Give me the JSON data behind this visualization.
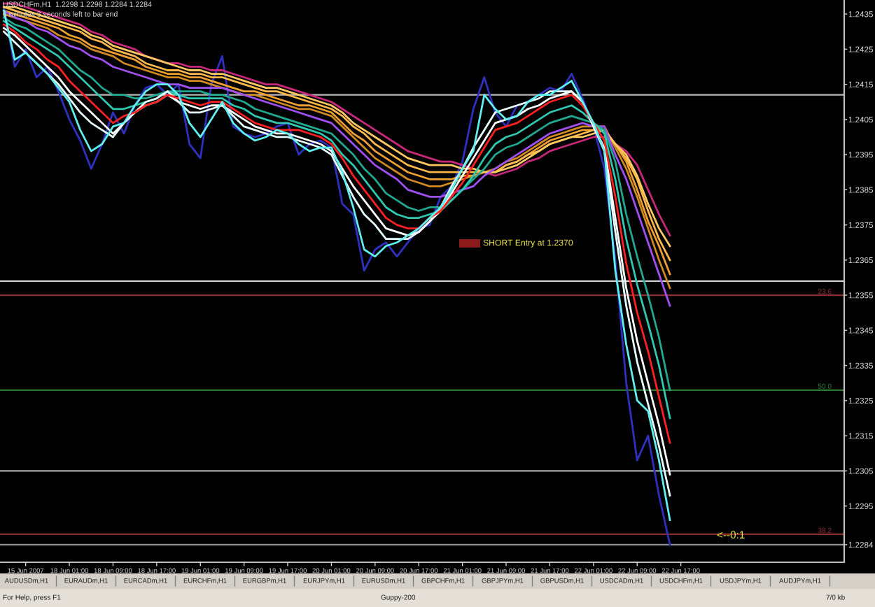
{
  "chart_data": {
    "type": "line",
    "title": "USDCHFm,H1  1.2298 1.2298 1.2284 1.2284",
    "subtitle": "8 minutes 3 seconds left to bar end",
    "categories": [
      null,
      null,
      "15 Jun 2007",
      null,
      null,
      null,
      "18 Jun 01:00",
      null,
      null,
      null,
      "18 Jun 09:00",
      null,
      null,
      null,
      "18 Jun 17:00",
      null,
      null,
      null,
      "19 Jun 01:00",
      null,
      null,
      null,
      "19 Jun 09:00",
      null,
      null,
      null,
      "19 Jun 17:00",
      null,
      null,
      null,
      "20 Jun 01:00",
      null,
      null,
      null,
      "20 Jun 09:00",
      null,
      null,
      null,
      "20 Jun 17:00",
      null,
      null,
      null,
      "21 Jun 01:00",
      null,
      null,
      null,
      "21 Jun 09:00",
      null,
      null,
      null,
      "21 Jun 17:00",
      null,
      null,
      null,
      "22 Jun 01:00",
      null,
      null,
      null,
      "22 Jun 09:00",
      null,
      null,
      null,
      "22 Jun 17:00",
      null,
      null,
      null,
      null,
      null,
      null,
      null,
      null,
      null,
      null,
      null,
      null,
      null,
      null
    ],
    "ylim": [
      1.2279,
      1.2439
    ],
    "yticks": [
      1.2284,
      1.2295,
      1.2305,
      1.2315,
      1.2325,
      1.2335,
      1.2345,
      1.2355,
      1.2365,
      1.2375,
      1.2385,
      1.2395,
      1.2405,
      1.2415,
      1.2425,
      1.2435
    ],
    "series": [
      {
        "color": "#3030c0",
        "values": [
          1.2437,
          1.242,
          1.2425,
          1.2417,
          1.242,
          1.2413,
          1.2405,
          1.2399,
          1.2391,
          1.2398,
          1.2407,
          1.2401,
          1.2409,
          1.2414,
          1.2415,
          1.2412,
          1.2415,
          1.2398,
          1.2394,
          1.2415,
          1.2423,
          1.2403,
          1.2401,
          1.24,
          1.2401,
          1.2403,
          1.2404,
          1.2395,
          1.2398,
          1.2399,
          1.2397,
          1.2381,
          1.2378,
          1.2362,
          1.2368,
          1.237,
          1.2366,
          1.237,
          1.2374,
          1.2375,
          1.2383,
          1.2386,
          1.2393,
          1.2408,
          1.2417,
          1.2407,
          1.2403,
          1.2409,
          1.241,
          1.2412,
          1.2414,
          1.2413,
          1.2418,
          1.2411,
          1.2403,
          1.2391,
          1.2365,
          1.233,
          1.2308,
          1.2315,
          1.2298,
          1.2284,
          null,
          null,
          null,
          null,
          null,
          null,
          null,
          null,
          null,
          null,
          null,
          null,
          null,
          null,
          null
        ]
      },
      {
        "color": "#c8287a",
        "values": [
          1.2438,
          1.2438,
          1.2437,
          1.2436,
          1.2435,
          1.2434,
          1.2433,
          1.2432,
          1.243,
          1.2429,
          1.2427,
          1.2426,
          1.2425,
          1.2423,
          1.2422,
          1.2421,
          1.2421,
          1.242,
          1.242,
          1.2419,
          1.2419,
          1.2418,
          1.2417,
          1.2416,
          1.2415,
          1.2415,
          1.2414,
          1.2413,
          1.2412,
          1.2411,
          1.241,
          1.2408,
          1.2406,
          1.2404,
          1.2402,
          1.24,
          1.2398,
          1.2396,
          1.2395,
          1.2394,
          1.2393,
          1.2393,
          1.2392,
          1.2391,
          1.239,
          1.2389,
          1.239,
          1.2391,
          1.2393,
          1.2394,
          1.2396,
          1.2397,
          1.2398,
          1.2399,
          1.24,
          1.24,
          1.2398,
          1.2396,
          1.2392,
          1.2385,
          1.2378,
          1.2372,
          null,
          null,
          null,
          null,
          null,
          null,
          null,
          null,
          null,
          null,
          null,
          null,
          null,
          null,
          null
        ]
      },
      {
        "color": "#d08a20",
        "values": [
          1.2435,
          1.2434,
          1.2433,
          1.2432,
          1.2431,
          1.2429,
          1.2428,
          1.2427,
          1.2425,
          1.2424,
          1.2423,
          1.2421,
          1.242,
          1.2419,
          1.2418,
          1.2417,
          1.2417,
          1.2416,
          1.2416,
          1.2415,
          1.2414,
          1.2413,
          1.2412,
          1.2412,
          1.2411,
          1.241,
          1.2409,
          1.2408,
          1.2408,
          1.2407,
          1.2406,
          1.2403,
          1.24,
          1.2397,
          1.2394,
          1.2392,
          1.239,
          1.2388,
          1.2387,
          1.2386,
          1.2386,
          1.2387,
          1.2388,
          1.2389,
          1.239,
          1.2391,
          1.2393,
          1.2394,
          1.2396,
          1.2398,
          1.24,
          1.2401,
          1.2402,
          1.2403,
          1.2403,
          1.2403,
          1.2397,
          1.2391,
          1.2383,
          1.2374,
          1.2365,
          1.2357,
          null,
          null,
          null,
          null,
          null,
          null,
          null,
          null,
          null,
          null,
          null,
          null,
          null,
          null,
          null
        ]
      },
      {
        "color": "#f0a030",
        "values": [
          1.2436,
          1.2435,
          1.2434,
          1.2433,
          1.2432,
          1.2431,
          1.2429,
          1.2428,
          1.2426,
          1.2425,
          1.2424,
          1.2423,
          1.2422,
          1.242,
          1.2419,
          1.2418,
          1.2418,
          1.2417,
          1.2417,
          1.2416,
          1.2415,
          1.2414,
          1.2413,
          1.2413,
          1.2412,
          1.2411,
          1.241,
          1.2409,
          1.2409,
          1.2408,
          1.2407,
          1.2404,
          1.2401,
          1.2399,
          1.2396,
          1.2394,
          1.2392,
          1.239,
          1.2389,
          1.2388,
          1.2388,
          1.2388,
          1.2389,
          1.2389,
          1.239,
          1.239,
          1.2392,
          1.2393,
          1.2395,
          1.2397,
          1.2399,
          1.24,
          1.2401,
          1.2402,
          1.2402,
          1.2402,
          1.2398,
          1.2393,
          1.2385,
          1.2376,
          1.2369,
          1.2361,
          null,
          null,
          null,
          null,
          null,
          null,
          null,
          null,
          null,
          null,
          null,
          null,
          null,
          null,
          null
        ]
      },
      {
        "color": "#ffb84a",
        "values": [
          1.2437,
          1.2436,
          1.2435,
          1.2434,
          1.2433,
          1.2432,
          1.2431,
          1.243,
          1.2428,
          1.2427,
          1.2425,
          1.2424,
          1.2423,
          1.2421,
          1.242,
          1.2419,
          1.2419,
          1.2418,
          1.2418,
          1.2417,
          1.2417,
          1.2416,
          1.2415,
          1.2414,
          1.2413,
          1.2413,
          1.2412,
          1.2411,
          1.241,
          1.2409,
          1.2408,
          1.2406,
          1.2403,
          1.2401,
          1.2398,
          1.2396,
          1.2394,
          1.2392,
          1.2391,
          1.239,
          1.239,
          1.239,
          1.239,
          1.239,
          1.239,
          1.239,
          1.2392,
          1.2393,
          1.2395,
          1.2396,
          1.2398,
          1.2399,
          1.24,
          1.2401,
          1.2402,
          1.2402,
          1.2398,
          1.2394,
          1.2388,
          1.2379,
          1.2371,
          1.2365,
          null,
          null,
          null,
          null,
          null,
          null,
          null,
          null,
          null,
          null,
          null,
          null,
          null,
          null,
          null
        ]
      },
      {
        "color": "#ffc860",
        "values": [
          1.2437,
          1.2437,
          1.2436,
          1.2435,
          1.2434,
          1.2433,
          1.2432,
          1.2431,
          1.2429,
          1.2428,
          1.2426,
          1.2425,
          1.2424,
          1.2423,
          1.2422,
          1.2421,
          1.242,
          1.2419,
          1.2419,
          1.2418,
          1.2418,
          1.2417,
          1.2416,
          1.2415,
          1.2414,
          1.2414,
          1.2413,
          1.2412,
          1.2411,
          1.241,
          1.2409,
          1.2407,
          1.2404,
          1.2402,
          1.24,
          1.2398,
          1.2396,
          1.2394,
          1.2393,
          1.2392,
          1.2392,
          1.2392,
          1.2391,
          1.2391,
          1.239,
          1.239,
          1.2391,
          1.2392,
          1.2394,
          1.2396,
          1.2398,
          1.2399,
          1.24,
          1.24,
          1.2401,
          1.2402,
          1.2398,
          1.2395,
          1.2389,
          1.2381,
          1.2374,
          1.2369,
          null,
          null,
          null,
          null,
          null,
          null,
          null,
          null,
          null,
          null,
          null,
          null,
          null,
          null,
          null
        ]
      },
      {
        "color": "#a050f0",
        "values": [
          1.2436,
          1.2434,
          1.2433,
          1.2431,
          1.243,
          1.2428,
          1.2426,
          1.2425,
          1.2423,
          1.2422,
          1.242,
          1.2419,
          1.2418,
          1.2417,
          1.2416,
          1.2415,
          1.2415,
          1.2414,
          1.2414,
          1.2414,
          1.2414,
          1.2413,
          1.2412,
          1.2411,
          1.241,
          1.2409,
          1.2408,
          1.2407,
          1.2406,
          1.2405,
          1.2404,
          1.2401,
          1.2398,
          1.2395,
          1.2392,
          1.239,
          1.2388,
          1.2385,
          1.2384,
          1.2383,
          1.2383,
          1.2384,
          1.2385,
          1.2386,
          1.2389,
          1.2391,
          1.2393,
          1.2395,
          1.2397,
          1.2399,
          1.2401,
          1.2402,
          1.2403,
          1.2404,
          1.2403,
          1.2403,
          1.2395,
          1.2388,
          1.2379,
          1.237,
          1.2361,
          1.2352,
          null,
          null,
          null,
          null,
          null,
          null,
          null,
          null,
          null,
          null,
          null,
          null,
          null,
          null,
          null
        ]
      },
      {
        "color": "#20a890",
        "values": [
          1.2434,
          1.2432,
          1.2431,
          1.2429,
          1.2427,
          1.2425,
          1.2422,
          1.2419,
          1.2417,
          1.2414,
          1.2412,
          1.2412,
          1.2411,
          1.2411,
          1.2412,
          1.2413,
          1.2413,
          1.2413,
          1.2413,
          1.2412,
          1.2412,
          1.2411,
          1.241,
          1.2408,
          1.2407,
          1.2406,
          1.2405,
          1.2404,
          1.2403,
          1.2402,
          1.2401,
          1.2398,
          1.2395,
          1.2391,
          1.2388,
          1.2384,
          1.2382,
          1.238,
          1.2379,
          1.238,
          1.238,
          1.2382,
          1.2385,
          1.2388,
          1.2391,
          1.2395,
          1.2397,
          1.2398,
          1.24,
          1.2402,
          1.2404,
          1.2405,
          1.2406,
          1.2405,
          1.2404,
          1.2402,
          1.2393,
          1.2378,
          1.2366,
          1.2355,
          1.2343,
          1.2328,
          null,
          null,
          null,
          null,
          null,
          null,
          null,
          null,
          null,
          null,
          null,
          null,
          null,
          null,
          null
        ]
      },
      {
        "color": "#30c8b0",
        "values": [
          1.2433,
          1.2431,
          1.2429,
          1.2427,
          1.2425,
          1.2423,
          1.242,
          1.2417,
          1.2414,
          1.2411,
          1.2408,
          1.2408,
          1.2409,
          1.241,
          1.2411,
          1.2413,
          1.2412,
          1.2411,
          1.2411,
          1.2411,
          1.2411,
          1.2409,
          1.2408,
          1.2406,
          1.2405,
          1.2404,
          1.2404,
          1.2403,
          1.2402,
          1.2401,
          1.2399,
          1.2395,
          1.2392,
          1.2388,
          1.2384,
          1.238,
          1.2378,
          1.2377,
          1.2377,
          1.2378,
          1.2379,
          1.2382,
          1.2385,
          1.2389,
          1.2394,
          1.2398,
          1.24,
          1.2401,
          1.2403,
          1.2405,
          1.2407,
          1.2408,
          1.2409,
          1.2407,
          1.2404,
          1.2401,
          1.2388,
          1.2371,
          1.2358,
          1.2347,
          1.2335,
          1.232,
          null,
          null,
          null,
          null,
          null,
          null,
          null,
          null,
          null,
          null,
          null,
          null,
          null,
          null,
          null
        ]
      },
      {
        "color": "#e8ffff",
        "values": [
          1.243,
          1.2427,
          1.2424,
          1.2421,
          1.2418,
          1.2415,
          1.2411,
          1.2407,
          1.2404,
          1.2402,
          1.24,
          1.2404,
          1.2407,
          1.241,
          1.2411,
          1.2413,
          1.241,
          1.2407,
          1.2407,
          1.2408,
          1.2409,
          1.2406,
          1.2403,
          1.2402,
          1.2401,
          1.24,
          1.24,
          1.2399,
          1.2398,
          1.2397,
          1.2395,
          1.2389,
          1.2383,
          1.2378,
          1.2375,
          1.2371,
          1.2371,
          1.2371,
          1.2373,
          1.2376,
          1.238,
          1.2386,
          1.2391,
          1.2397,
          1.2402,
          1.2407,
          1.2408,
          1.2409,
          1.241,
          1.2411,
          1.2413,
          1.2413,
          1.2413,
          1.241,
          1.2403,
          1.2396,
          1.2373,
          1.2352,
          1.2336,
          1.2324,
          1.2312,
          1.2298,
          null,
          null,
          null,
          null,
          null,
          null,
          null,
          null,
          null,
          null,
          null,
          null,
          null,
          null,
          null
        ]
      },
      {
        "color": "#ffffff",
        "values": [
          1.2431,
          1.2429,
          1.2426,
          1.2423,
          1.242,
          1.2417,
          1.2413,
          1.241,
          1.2407,
          1.2404,
          1.2401,
          1.2404,
          1.2407,
          1.2409,
          1.241,
          1.2412,
          1.241,
          1.2409,
          1.2408,
          1.2409,
          1.2409,
          1.2407,
          1.2405,
          1.2403,
          1.2402,
          1.2401,
          1.2401,
          1.24,
          1.2399,
          1.2398,
          1.2396,
          1.2391,
          1.2386,
          1.2382,
          1.2378,
          1.2374,
          1.2373,
          1.2372,
          1.2373,
          1.2376,
          1.2379,
          1.2384,
          1.2389,
          1.2394,
          1.2399,
          1.2404,
          1.2405,
          1.2406,
          1.2408,
          1.2409,
          1.2411,
          1.2412,
          1.2413,
          1.241,
          1.2403,
          1.2397,
          1.2377,
          1.2357,
          1.2342,
          1.233,
          1.2318,
          1.2304,
          null,
          null,
          null,
          null,
          null,
          null,
          null,
          null,
          null,
          null,
          null,
          null,
          null,
          null,
          null
        ]
      },
      {
        "color": "#ff2020",
        "values": [
          1.2432,
          1.243,
          1.2427,
          1.2425,
          1.2422,
          1.242,
          1.2416,
          1.2413,
          1.241,
          1.2407,
          1.2404,
          1.2406,
          1.2407,
          1.2409,
          1.241,
          1.2412,
          1.2411,
          1.241,
          1.2409,
          1.241,
          1.241,
          1.2408,
          1.2406,
          1.2404,
          1.2403,
          1.2402,
          1.2402,
          1.2402,
          1.2401,
          1.24,
          1.2398,
          1.2394,
          1.2389,
          1.2385,
          1.2381,
          1.2377,
          1.2375,
          1.2374,
          1.2374,
          1.2377,
          1.2379,
          1.2383,
          1.2387,
          1.2392,
          1.2397,
          1.2402,
          1.2403,
          1.2404,
          1.2406,
          1.2408,
          1.241,
          1.2411,
          1.2412,
          1.2409,
          1.2404,
          1.2399,
          1.2383,
          1.2364,
          1.235,
          1.2339,
          1.2326,
          1.2313,
          null,
          null,
          null,
          null,
          null,
          null,
          null,
          null,
          null,
          null,
          null,
          null,
          null,
          null,
          null
        ]
      },
      {
        "color": "#60f0f0",
        "values": [
          1.2436,
          1.2422,
          1.2424,
          1.2421,
          1.2418,
          1.2414,
          1.241,
          1.2402,
          1.2396,
          1.2398,
          1.2403,
          1.2404,
          1.2409,
          1.2413,
          1.2415,
          1.2415,
          1.2412,
          1.2404,
          1.24,
          1.2405,
          1.241,
          1.2404,
          1.2401,
          1.2399,
          1.24,
          1.2402,
          1.2401,
          1.2398,
          1.2396,
          1.2397,
          1.2397,
          1.239,
          1.238,
          1.2368,
          1.2366,
          1.2369,
          1.237,
          1.2372,
          1.2374,
          1.2377,
          1.238,
          1.2385,
          1.2391,
          1.2396,
          1.2412,
          1.2408,
          1.2405,
          1.2406,
          1.241,
          1.2412,
          1.2412,
          1.2414,
          1.2416,
          1.241,
          1.2404,
          1.2396,
          1.2362,
          1.2341,
          1.2325,
          1.2322,
          1.2308,
          1.2291,
          null,
          null,
          null,
          null,
          null,
          null,
          null,
          null,
          null,
          null,
          null,
          null,
          null,
          null,
          null
        ]
      }
    ],
    "ref_lines": [
      {
        "axis": "y",
        "value": 1.2412,
        "color": "#b8b8b8"
      },
      {
        "axis": "y",
        "value": 1.2359,
        "color": "#d8d8d8"
      },
      {
        "axis": "y",
        "value": 1.2355,
        "color": "#8b2e2e"
      },
      {
        "axis": "y",
        "value": 1.2328,
        "color": "#2a7a2a"
      },
      {
        "axis": "y",
        "value": 1.2305,
        "color": "#a8a8a8"
      },
      {
        "axis": "y",
        "value": 1.2287,
        "color": "#8b2e2e"
      },
      {
        "axis": "y",
        "value": 1.2284,
        "color": "#909090"
      }
    ],
    "annotations": [
      {
        "text": "23.6",
        "y": 1.2355
      },
      {
        "text": "50.0",
        "y": 1.2328
      },
      {
        "text": "38.2",
        "y": 1.2287
      },
      "SHORT Entry at 1.2370",
      "<--0:1",
      "AUDUSDm,H1",
      "EURAUDm,H1",
      "EURCADm,H1",
      "EURCHFm,H1",
      "EURGBPm,H1",
      "EURJPYm,H1",
      "EURUSDm,H1",
      "GBPCHFm,H1",
      "GBPJPYm,H1",
      "GBPUSDm,H1",
      "USDCADm,H1",
      "USDCHFm,H1",
      "USDJPYm,H1",
      "AUDJPYm,H1",
      "For Help, press F1",
      "Guppy-200",
      "7/0 kb"
    ]
  }
}
